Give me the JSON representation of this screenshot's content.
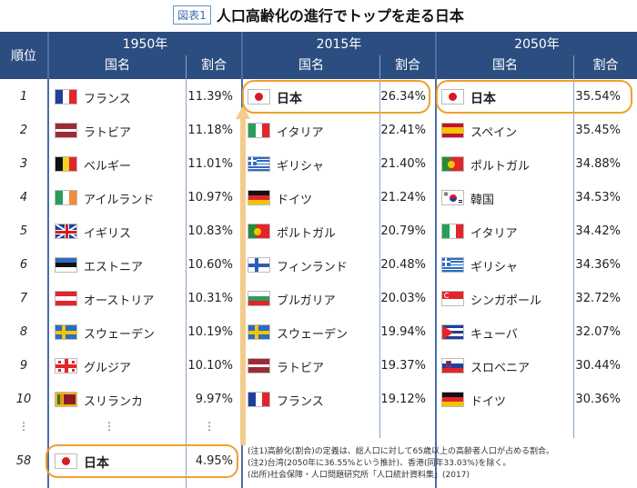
{
  "title": {
    "label": "図表1",
    "main": "人口高齢化の進行でトップを走る日本"
  },
  "header": {
    "rank": "順位",
    "years": [
      "1950年",
      "2015年",
      "2050年"
    ],
    "name_label": "国名",
    "pct_label": "割合"
  },
  "ranks": [
    "1",
    "2",
    "3",
    "4",
    "5",
    "6",
    "7",
    "8",
    "9",
    "10"
  ],
  "ellipsis": "⋮",
  "col1950": [
    {
      "name": "フランス",
      "pct": "11.39%",
      "flag": "fr"
    },
    {
      "name": "ラトビア",
      "pct": "11.18%",
      "flag": "lv"
    },
    {
      "name": "ベルギー",
      "pct": "11.01%",
      "flag": "be"
    },
    {
      "name": "アイルランド",
      "pct": "10.97%",
      "flag": "ie"
    },
    {
      "name": "イギリス",
      "pct": "10.83%",
      "flag": "gb"
    },
    {
      "name": "エストニア",
      "pct": "10.60%",
      "flag": "ee"
    },
    {
      "name": "オーストリア",
      "pct": "10.31%",
      "flag": "at"
    },
    {
      "name": "スウェーデン",
      "pct": "10.19%",
      "flag": "se"
    },
    {
      "name": "グルジア",
      "pct": "10.10%",
      "flag": "ge"
    },
    {
      "name": "スリランカ",
      "pct": "9.97%",
      "flag": "lk"
    }
  ],
  "col2015": [
    {
      "name": "日本",
      "pct": "26.34%",
      "flag": "jp"
    },
    {
      "name": "イタリア",
      "pct": "22.41%",
      "flag": "it"
    },
    {
      "name": "ギリシャ",
      "pct": "21.40%",
      "flag": "gr"
    },
    {
      "name": "ドイツ",
      "pct": "21.24%",
      "flag": "de"
    },
    {
      "name": "ポルトガル",
      "pct": "20.79%",
      "flag": "pt"
    },
    {
      "name": "フィンランド",
      "pct": "20.48%",
      "flag": "fi"
    },
    {
      "name": "ブルガリア",
      "pct": "20.03%",
      "flag": "bg"
    },
    {
      "name": "スウェーデン",
      "pct": "19.94%",
      "flag": "se"
    },
    {
      "name": "ラトビア",
      "pct": "19.37%",
      "flag": "lv"
    },
    {
      "name": "フランス",
      "pct": "19.12%",
      "flag": "fr"
    }
  ],
  "col2050": [
    {
      "name": "日本",
      "pct": "35.54%",
      "flag": "jp"
    },
    {
      "name": "スペイン",
      "pct": "35.45%",
      "flag": "es"
    },
    {
      "name": "ポルトガル",
      "pct": "34.88%",
      "flag": "pt"
    },
    {
      "name": "韓国",
      "pct": "34.53%",
      "flag": "kr"
    },
    {
      "name": "イタリア",
      "pct": "34.42%",
      "flag": "it"
    },
    {
      "name": "ギリシャ",
      "pct": "34.36%",
      "flag": "gr"
    },
    {
      "name": "シンガポール",
      "pct": "32.72%",
      "flag": "sg"
    },
    {
      "name": "キューバ",
      "pct": "32.07%",
      "flag": "cu"
    },
    {
      "name": "スロベニア",
      "pct": "30.44%",
      "flag": "si"
    },
    {
      "name": "ドイツ",
      "pct": "30.36%",
      "flag": "de"
    }
  ],
  "japan1950": {
    "rank": "58",
    "name": "日本",
    "pct": "4.95%",
    "flag": "jp"
  },
  "notes": [
    "(注1)高齢化(割合)の定義は、総人口に対して65歳以上の高齢者人口が占める割合。",
    "(注2)台湾(2050年に36.55%という推計)、香港(同年33.03%)を除く。",
    "(出所)社会保障・人口問題研究所「人口統計資料集」(2017)"
  ],
  "colors": {
    "header": "#2c4d80",
    "highlight": "#f0a02c",
    "arrow": "#f3cc8d"
  }
}
